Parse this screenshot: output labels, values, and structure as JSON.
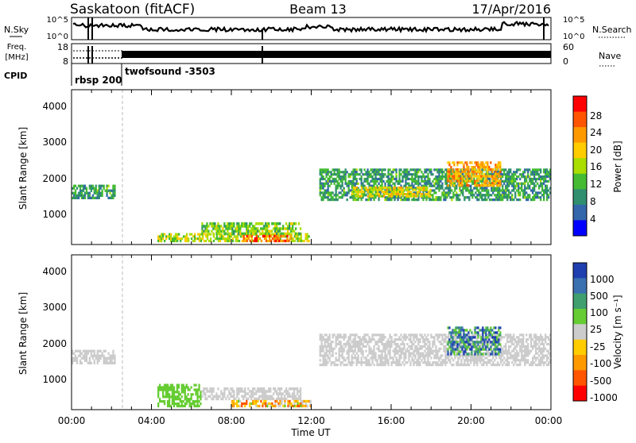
{
  "header": {
    "radar": "Saskatoon (fitACF)",
    "beam": "Beam 13",
    "date": "17/Apr/2016"
  },
  "top_panel": {
    "left_label": "N.Sky",
    "right_label": "N.Search",
    "left_ticks": [
      "10^5",
      "10^0"
    ],
    "right_ticks": [
      "10^5",
      "10^0"
    ]
  },
  "freq_panel": {
    "label_line1": "Freq.",
    "label_line2": "[MHz]",
    "left_ticks": [
      "18",
      "8"
    ],
    "right_ticks": [
      "60",
      "0"
    ],
    "right_label": "Nave"
  },
  "cpid": {
    "label": "CPID",
    "segments": [
      "rbsp 200",
      "twofsound -3503"
    ]
  },
  "x_ticks": [
    "00:00",
    "04:00",
    "08:00",
    "12:00",
    "16:00",
    "20:00",
    "00:00"
  ],
  "x_label": "Time UT",
  "y_label": "Slant Range [km]",
  "y_ticks": [
    "4000",
    "3000",
    "2000",
    "1000"
  ],
  "power_colorbar": {
    "label": "Power [dB]",
    "ticks": [
      "28",
      "24",
      "20",
      "16",
      "12",
      "8",
      "4"
    ],
    "colors": [
      "#ff0000",
      "#ff5500",
      "#ff9900",
      "#ffcc00",
      "#aadd00",
      "#44bb33",
      "#2f8f6f",
      "#3366aa",
      "#0000ff"
    ]
  },
  "velocity_colorbar": {
    "label": "Velocity [m s⁻¹]",
    "ticks": [
      "1000",
      "500",
      "100",
      "25",
      "-25",
      "-100",
      "-500",
      "-1000"
    ],
    "colors": [
      "#1f3fb0",
      "#3a6fb0",
      "#3f9f6f",
      "#66cc33",
      "#cccccc",
      "#ffcc00",
      "#ff9900",
      "#ff5500",
      "#ff0000"
    ]
  },
  "chart_data": [
    {
      "type": "heatmap",
      "title": "Power [dB]",
      "xlabel": "Time UT",
      "ylabel": "Slant Range [km]",
      "xlim": [
        0,
        24
      ],
      "ylim": [
        180,
        4500
      ],
      "clim": [
        0,
        32
      ],
      "regions": [
        {
          "t0": 0.0,
          "t1": 2.2,
          "r0": 1450,
          "r1": 1850,
          "value": 10
        },
        {
          "t0": 4.3,
          "t1": 12.0,
          "r0": 250,
          "r1": 500,
          "value": 16
        },
        {
          "t0": 6.5,
          "t1": 11.5,
          "r0": 450,
          "r1": 800,
          "value": 14
        },
        {
          "t0": 8.5,
          "t1": 11.0,
          "r0": 250,
          "r1": 450,
          "value": 26
        },
        {
          "t0": 12.4,
          "t1": 24.0,
          "r0": 1400,
          "r1": 2300,
          "value": 10
        },
        {
          "t0": 14.0,
          "t1": 18.0,
          "r0": 1500,
          "r1": 1800,
          "value": 18
        },
        {
          "t0": 18.8,
          "t1": 21.5,
          "r0": 1800,
          "r1": 2500,
          "value": 22
        }
      ]
    },
    {
      "type": "heatmap",
      "title": "Velocity [m s⁻¹]",
      "xlabel": "Time UT",
      "ylabel": "Slant Range [km]",
      "xlim": [
        0,
        24
      ],
      "ylim": [
        180,
        4500
      ],
      "clim": [
        -1000,
        1000
      ],
      "regions": [
        {
          "t0": 0.0,
          "t1": 2.2,
          "r0": 1450,
          "r1": 1850,
          "value": 0
        },
        {
          "t0": 4.3,
          "t1": 6.5,
          "r0": 250,
          "r1": 900,
          "value": 150
        },
        {
          "t0": 6.5,
          "t1": 11.5,
          "r0": 450,
          "r1": 800,
          "value": -10
        },
        {
          "t0": 8.0,
          "t1": 12.0,
          "r0": 250,
          "r1": 450,
          "value": -300
        },
        {
          "t0": 12.4,
          "t1": 24.0,
          "r0": 1400,
          "r1": 2300,
          "value": 0
        },
        {
          "t0": 18.8,
          "t1": 21.5,
          "r0": 1700,
          "r1": 2500,
          "value": 600
        }
      ]
    }
  ]
}
